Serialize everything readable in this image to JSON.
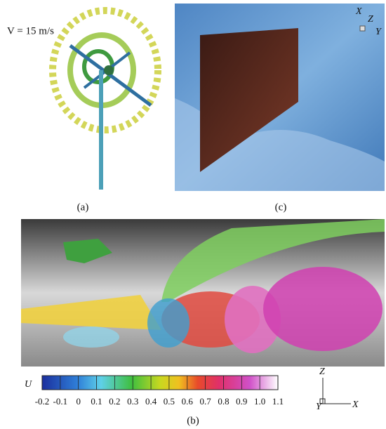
{
  "panels": {
    "a": {
      "annotation": "V = 15 m/s",
      "caption": "(a)"
    },
    "c": {
      "caption": "(c)",
      "axes": {
        "x": "X",
        "y": "Y",
        "z": "Z"
      }
    },
    "b": {
      "caption": "(b)",
      "colorbar": {
        "label": "U",
        "ticks": [
          -0.2,
          -0.1,
          0,
          0.1,
          0.2,
          0.3,
          0.4,
          0.5,
          0.6,
          0.7,
          0.8,
          0.9,
          {
            "value": 1,
            "label": "1.0"
          },
          1.1
        ]
      },
      "axes": {
        "x": "X",
        "y": "Y",
        "z": "Z"
      }
    }
  }
}
